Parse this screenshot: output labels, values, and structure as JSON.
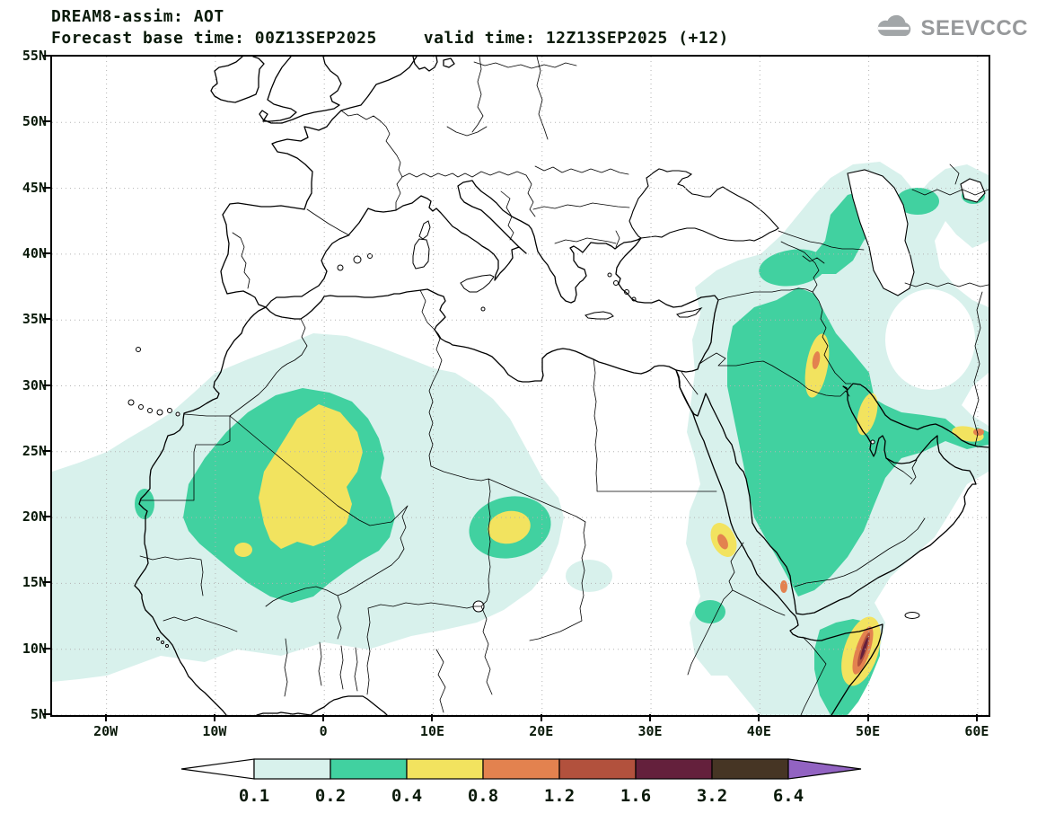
{
  "header": {
    "title": "DREAM8-assim: AOT",
    "base_time": "Forecast base time: 00Z13SEP2025",
    "valid_time": "valid time: 12Z13SEP2025 (+12)"
  },
  "logo": {
    "text": "SEEVCCC"
  },
  "map": {
    "x_ticks": [
      "20W",
      "10W",
      "0",
      "10E",
      "20E",
      "30E",
      "40E",
      "50E",
      "60E"
    ],
    "y_ticks": [
      "55N",
      "50N",
      "45N",
      "40N",
      "35N",
      "30N",
      "25N",
      "20N",
      "15N",
      "10N",
      "5N"
    ],
    "variable": "AOT",
    "levels": [
      0.1,
      0.2,
      0.4,
      0.8,
      1.2,
      1.6,
      3.2,
      6.4
    ]
  },
  "legend": {
    "labels": [
      "0.1",
      "0.2",
      "0.4",
      "0.8",
      "1.2",
      "1.6",
      "3.2",
      "6.4"
    ]
  },
  "palette": {
    "below_0_1": "#ffffff",
    "aot_0_1": "#d8f1ec",
    "aot_0_2": "#41d1a0",
    "aot_0_4": "#f2e35f",
    "aot_0_8": "#e3824f",
    "aot_1_2": "#b2513d",
    "aot_1_6": "#64203c",
    "aot_3_2": "#463524",
    "above_6_4": "#9263c2",
    "ink": "#0a1a0a",
    "grid": "#b3b3b3",
    "logo_gray": "#97999b"
  }
}
